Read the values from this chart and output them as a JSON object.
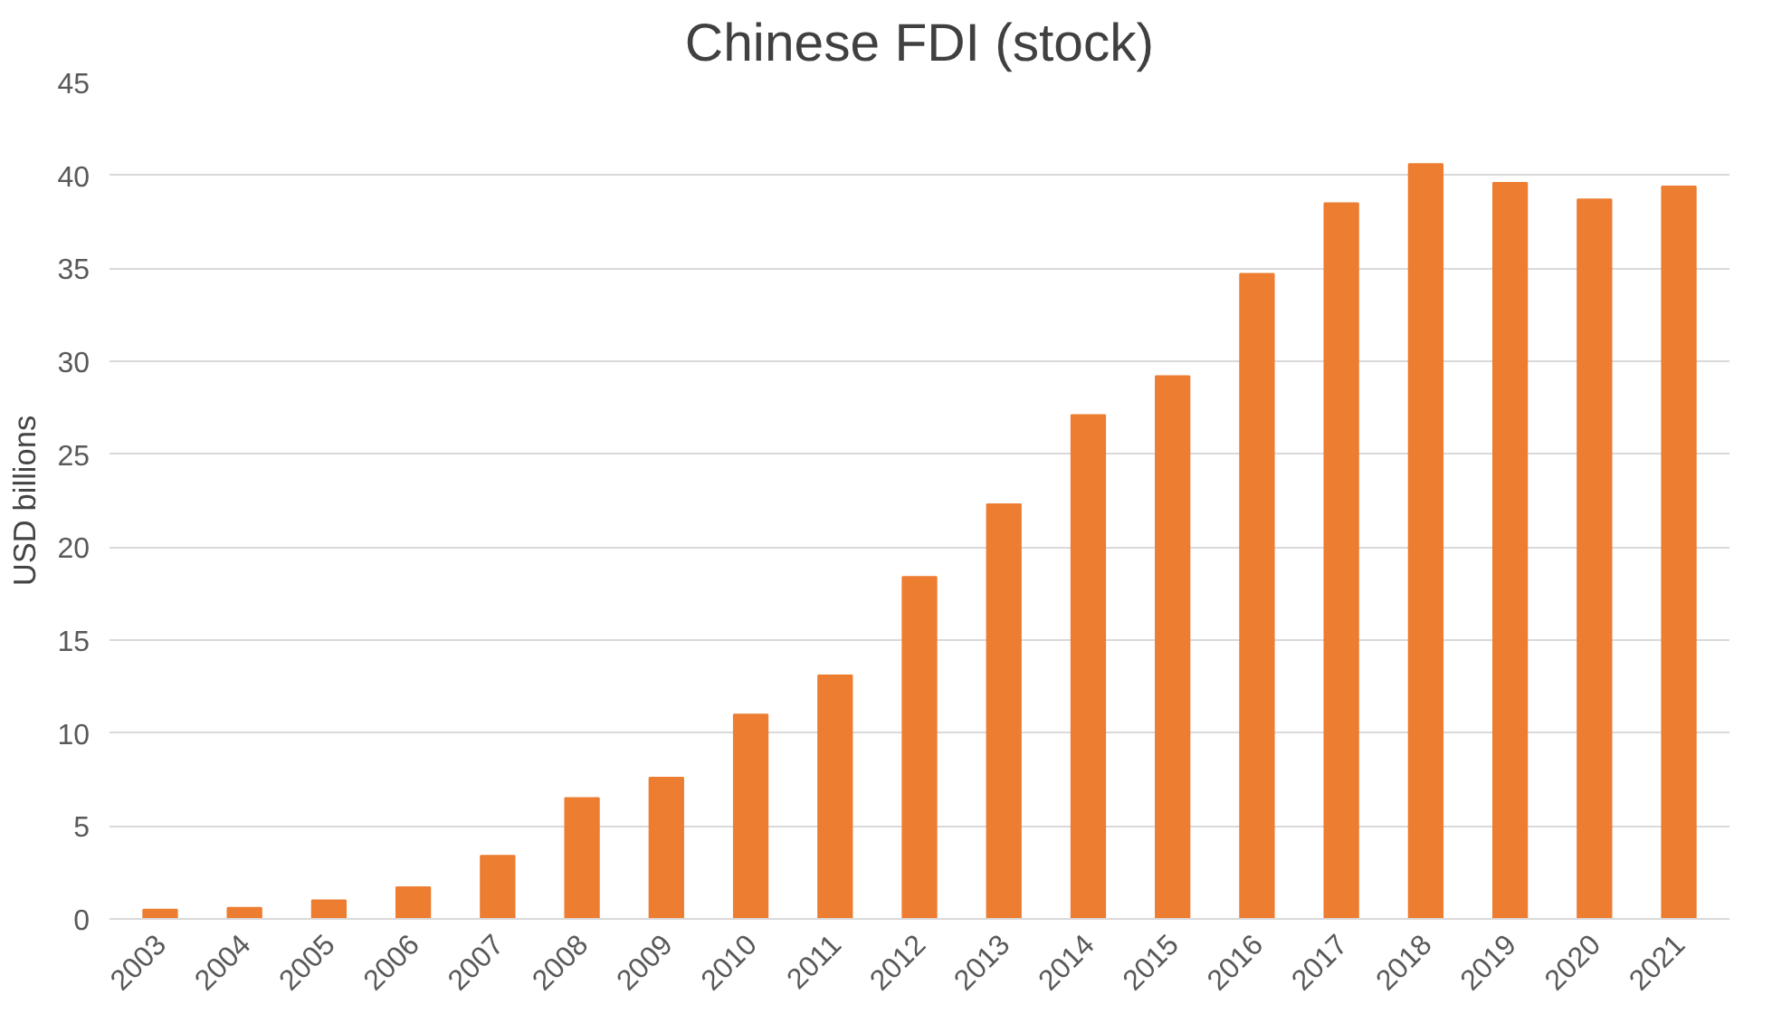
{
  "chart_data": {
    "type": "bar",
    "title": "Chinese FDI (stock)",
    "ylabel": "USD billions",
    "categories": [
      "2003",
      "2004",
      "2005",
      "2006",
      "2007",
      "2008",
      "2009",
      "2010",
      "2011",
      "2012",
      "2013",
      "2014",
      "2015",
      "2016",
      "2017",
      "2018",
      "2019",
      "2020",
      "2021"
    ],
    "values": [
      0.5,
      0.6,
      1.0,
      1.7,
      3.4,
      6.5,
      7.6,
      11.0,
      13.1,
      18.4,
      22.3,
      27.1,
      29.2,
      34.7,
      38.5,
      40.6,
      39.6,
      38.7,
      39.4
    ],
    "color": "#ed7d31",
    "ylim": [
      0,
      45
    ],
    "yticks": [
      0,
      5,
      10,
      15,
      20,
      25,
      30,
      35,
      40,
      45
    ],
    "grid": "y"
  }
}
